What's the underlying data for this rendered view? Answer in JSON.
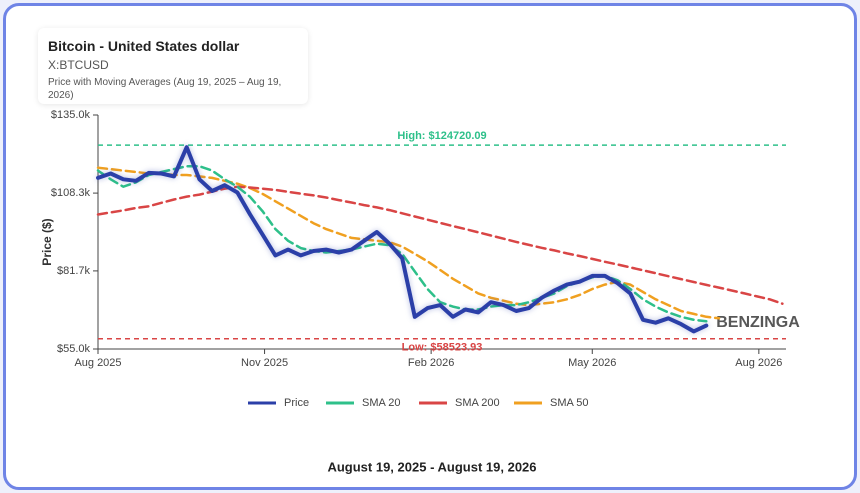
{
  "chart_data": {
    "type": "line",
    "title": "Bitcoin - United States dollar",
    "symbol": "X:BTCUSD",
    "subtitle": "Price with Moving Averages (Aug 19, 2025 – Aug 19, 2026)",
    "ylabel": "Price ($)",
    "footer": "August 19, 2025 - August 19, 2026",
    "watermark": "BENZINGA",
    "x": [
      "2025-08-01",
      "2025-08-08",
      "2025-08-15",
      "2025-08-22",
      "2025-08-29",
      "2025-09-05",
      "2025-09-12",
      "2025-09-19",
      "2025-09-26",
      "2025-10-03",
      "2025-10-10",
      "2025-10-17",
      "2025-10-24",
      "2025-10-31",
      "2025-11-07",
      "2025-11-14",
      "2025-11-21",
      "2025-11-28",
      "2025-12-05",
      "2025-12-12",
      "2025-12-19",
      "2025-12-26",
      "2026-01-02",
      "2026-01-09",
      "2026-01-16",
      "2026-01-23",
      "2026-01-30",
      "2026-02-06",
      "2026-02-13",
      "2026-02-20",
      "2026-02-27",
      "2026-03-06",
      "2026-03-13",
      "2026-03-20",
      "2026-03-27",
      "2026-04-03",
      "2026-04-10",
      "2026-04-17",
      "2026-04-24",
      "2026-05-01",
      "2026-05-08",
      "2026-05-15",
      "2026-05-22",
      "2026-05-29",
      "2026-06-05",
      "2026-06-12",
      "2026-06-19",
      "2026-06-26",
      "2026-07-03",
      "2026-07-10",
      "2026-07-17",
      "2026-07-24",
      "2026-07-31",
      "2026-08-07",
      "2026-08-14"
    ],
    "series": [
      {
        "name": "Price",
        "color": "#2b3fa8",
        "width": 4,
        "values": [
          113500,
          115000,
          113000,
          112500,
          115200,
          115000,
          114000,
          124000,
          113000,
          109000,
          111000,
          108500,
          101000,
          94000,
          87000,
          89000,
          87000,
          88500,
          89000,
          88000,
          89000,
          92000,
          95000,
          91000,
          86000,
          66000,
          69000,
          70000,
          66000,
          68500,
          67500,
          71000,
          70000,
          68000,
          69000,
          72500,
          75000,
          77000,
          78000,
          80000,
          80000,
          77500,
          74000,
          65000,
          64000,
          65500,
          63500,
          61000,
          63000,
          null,
          null,
          null,
          null,
          null,
          null
        ]
      },
      {
        "name": "SMA 20",
        "color": "#2ec08a",
        "width": 2.5,
        "values": [
          116000,
          113000,
          110500,
          112000,
          114500,
          115500,
          116500,
          117500,
          117500,
          116000,
          113000,
          110500,
          107000,
          102000,
          96000,
          92000,
          89500,
          88500,
          88000,
          88500,
          89000,
          90000,
          91000,
          90500,
          87500,
          81500,
          75500,
          71000,
          69500,
          68500,
          68500,
          69500,
          70000,
          70000,
          71000,
          72500,
          74000,
          76500,
          78000,
          79500,
          80000,
          78500,
          75500,
          72000,
          69500,
          67500,
          66000,
          65000,
          64500,
          null,
          null,
          null,
          null,
          null,
          null
        ]
      },
      {
        "name": "SMA 200",
        "color": "#d94545",
        "width": 2.5,
        "values": [
          101000,
          101700,
          102400,
          103200,
          103800,
          105000,
          106100,
          107100,
          107800,
          108800,
          109800,
          110500,
          110200,
          109800,
          109400,
          108700,
          108100,
          107500,
          106800,
          105900,
          105100,
          104200,
          103400,
          102500,
          101400,
          100300,
          99200,
          98100,
          97000,
          96000,
          94900,
          93800,
          92700,
          91600,
          90600,
          89600,
          88700,
          87700,
          86800,
          85800,
          84800,
          83900,
          82900,
          81900,
          80900,
          79900,
          78900,
          77900,
          76900,
          76000,
          75000,
          74000,
          73000,
          72000,
          70500
        ]
      },
      {
        "name": "SMA 50",
        "color": "#f0a020",
        "width": 2.5,
        "values": [
          117000,
          116500,
          116000,
          115500,
          115000,
          115000,
          114500,
          114500,
          114000,
          113500,
          112500,
          111500,
          110000,
          108000,
          105500,
          103000,
          100500,
          98000,
          96000,
          94500,
          93000,
          92500,
          92000,
          91500,
          90000,
          87500,
          85000,
          82000,
          79000,
          76500,
          74000,
          72500,
          71500,
          70500,
          70000,
          70500,
          71000,
          72000,
          73500,
          75500,
          77000,
          78000,
          77000,
          74500,
          72000,
          70000,
          68000,
          67000,
          66000,
          65500,
          null,
          null,
          null,
          null,
          null
        ]
      }
    ],
    "annotations": [
      {
        "label": "High: $124720.09",
        "value": 124720.09,
        "color": "#2ec08a"
      },
      {
        "label": "Low: $58523.93",
        "value": 58523.93,
        "color": "#d94545"
      }
    ],
    "xlim": [
      "2025-08-01",
      "2026-08-16"
    ],
    "xticks": [
      {
        "value": "2025-08-01",
        "label": "Aug 2025"
      },
      {
        "value": "2025-11-01",
        "label": "Nov 2025"
      },
      {
        "value": "2026-02-01",
        "label": "Feb 2026"
      },
      {
        "value": "2026-05-01",
        "label": "May 2026"
      },
      {
        "value": "2026-08-01",
        "label": "Aug 2026"
      }
    ],
    "ylim": [
      55000,
      135000
    ],
    "yticks": [
      {
        "value": 55000,
        "label": "$55.0k"
      },
      {
        "value": 81700,
        "label": "$81.7k"
      },
      {
        "value": 108300,
        "label": "$108.3k"
      },
      {
        "value": 135000,
        "label": "$135.0k"
      }
    ],
    "grid": false,
    "legend": "bottom"
  }
}
